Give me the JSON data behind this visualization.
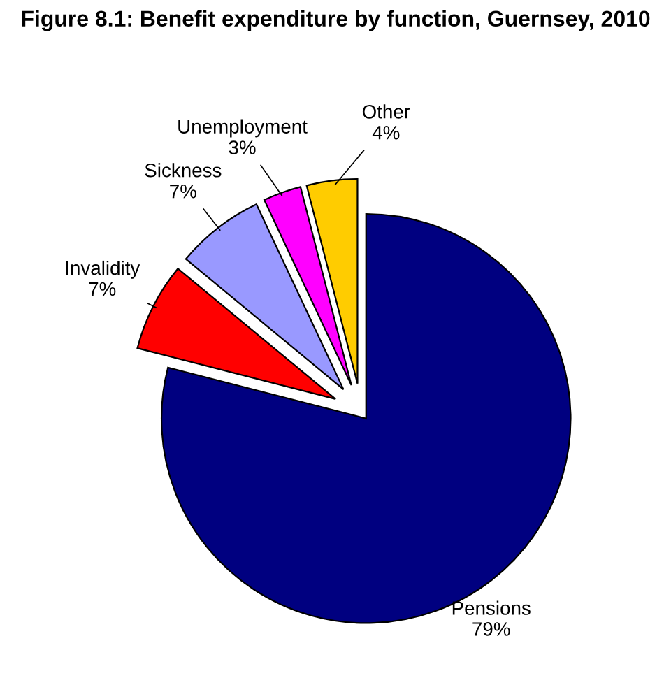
{
  "chart_data": {
    "type": "pie",
    "title": "Figure 8.1: Benefit expenditure by function, Guernsey, 2010",
    "categories": [
      "Pensions",
      "Invalidity",
      "Sickness",
      "Unemployment",
      "Other"
    ],
    "values": [
      79,
      7,
      7,
      3,
      4
    ],
    "value_labels": [
      "79%",
      "7%",
      "7%",
      "3%",
      "4%"
    ],
    "colors": [
      "#000080",
      "#ff0000",
      "#9999ff",
      "#ff00ff",
      "#ffcc00"
    ],
    "legend": false
  }
}
